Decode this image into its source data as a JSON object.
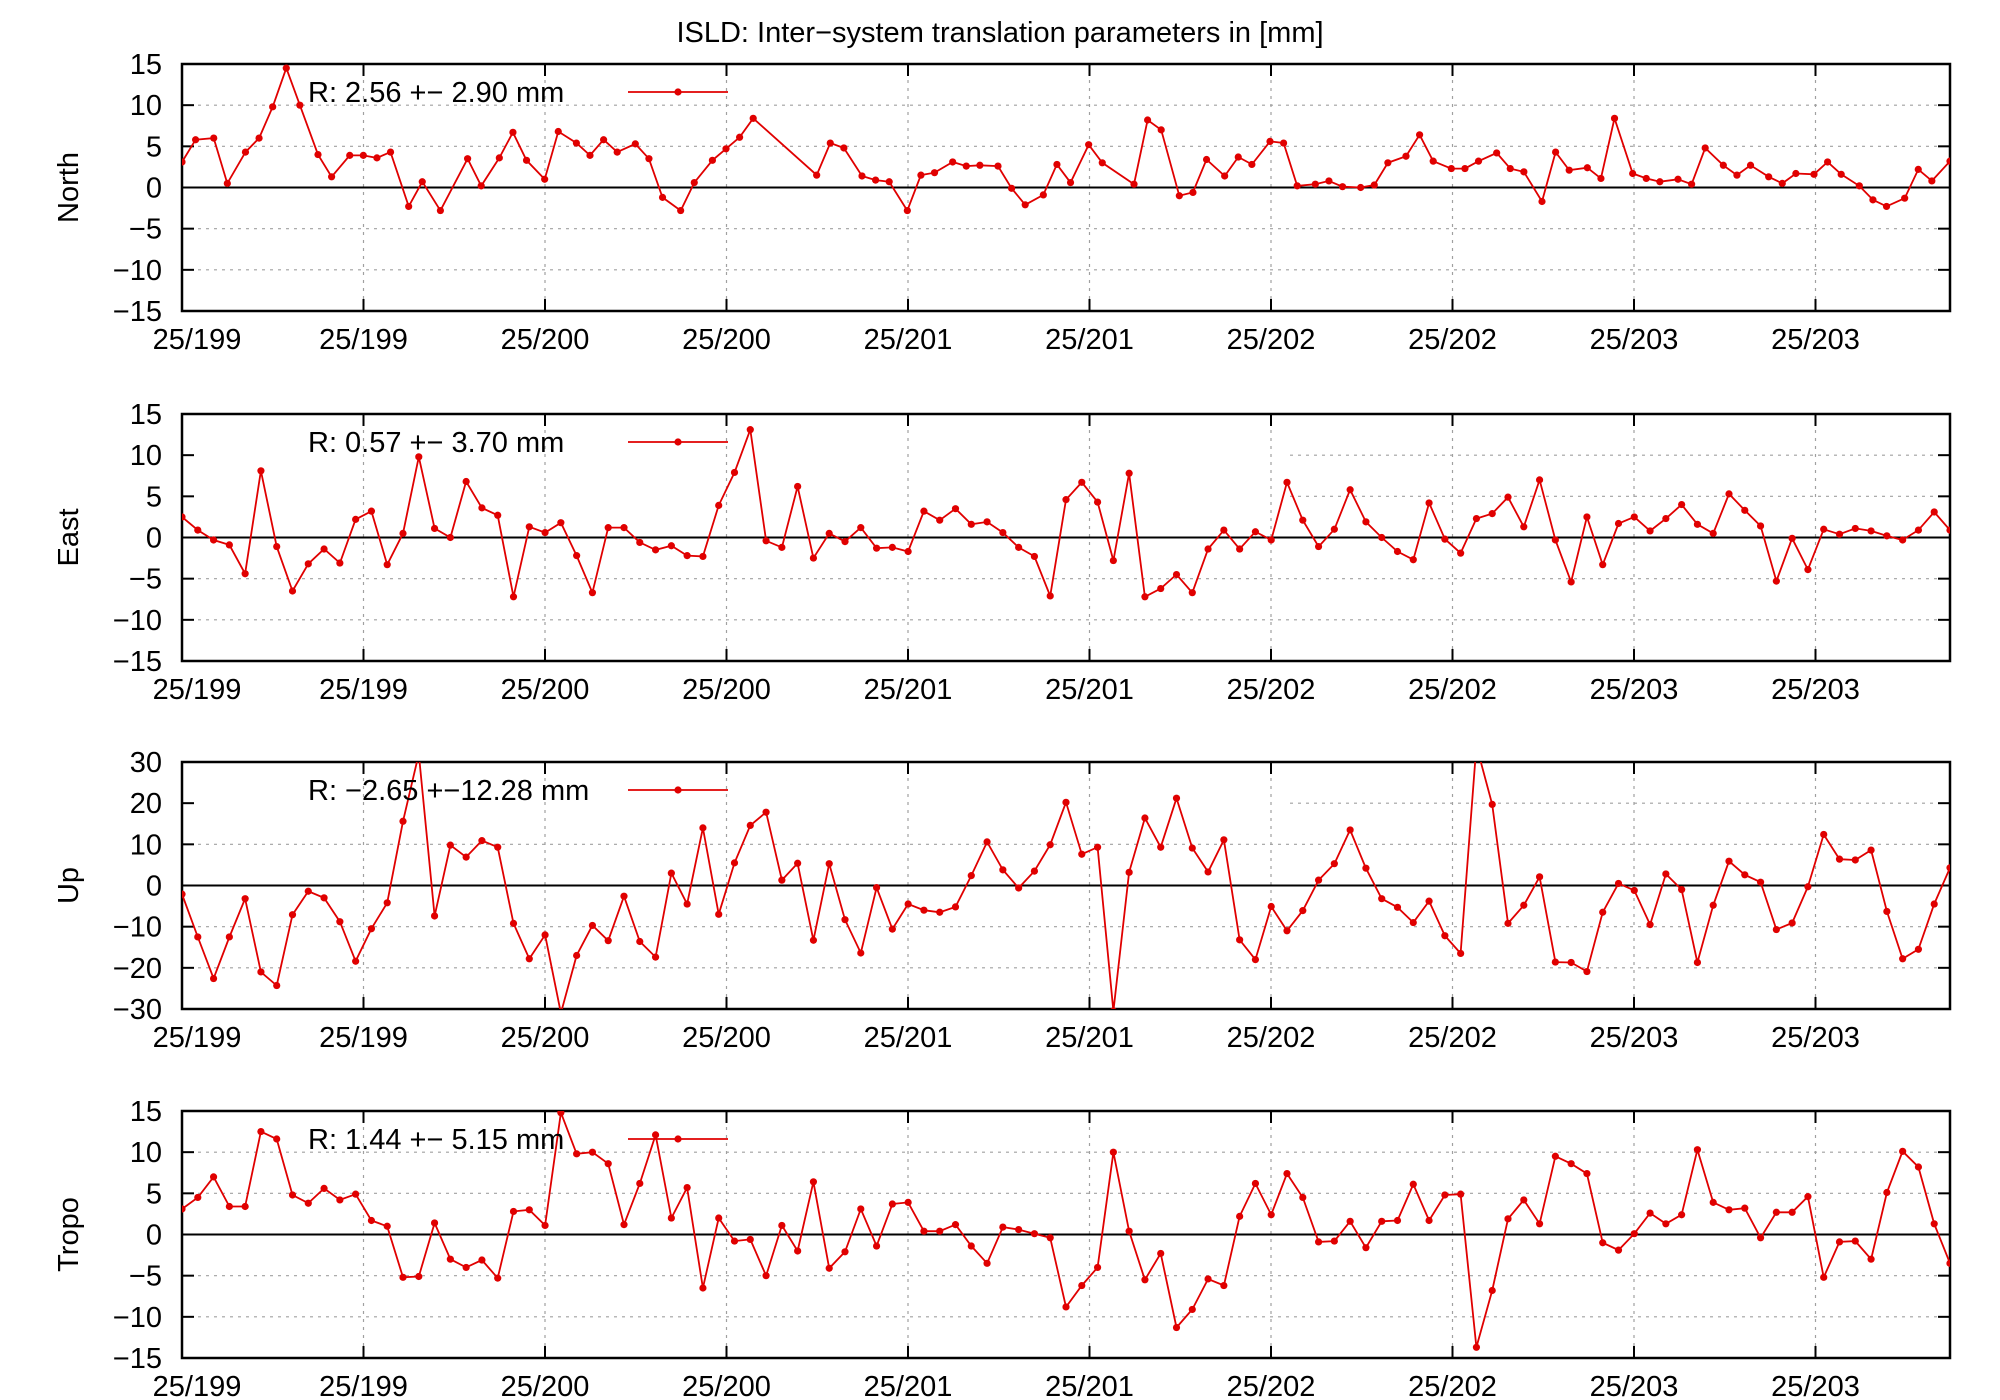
{
  "title": "ISLD: Inter−system translation parameters in [mm]",
  "chart_data": [
    {
      "type": "line",
      "ylabel": "North",
      "ylim": [
        -15,
        15
      ],
      "yticks": [
        -15,
        -10,
        -5,
        0,
        5,
        10,
        15
      ],
      "ytick_labels": [
        "−15",
        "−10",
        "−5",
        "0",
        "5",
        "10",
        "15"
      ],
      "xlim": [
        0,
        195
      ],
      "xtick_labels": [
        "25/199",
        "25/199",
        "25/200",
        "25/200",
        "25/201",
        "25/201",
        "25/202",
        "25/202",
        "25/203",
        "25/203"
      ],
      "grid": true,
      "legend_position": "top-left",
      "legend": "R:   2.56 +− 2.90 mm",
      "series_color": "#e00000",
      "values": [
        3.1,
        5.8,
        6,
        0.5,
        4.3,
        6,
        9.8,
        14.5,
        10,
        4,
        1.3,
        3.9,
        3.9,
        3.6,
        4.3,
        -2.3,
        0.7,
        -2.8,
        3.5,
        0.2,
        3.6,
        6.7,
        3.3,
        1,
        6.8,
        5.4,
        3.9,
        5.8,
        4.3,
        5.3,
        3.5,
        -1.2,
        -2.8,
        0.6,
        3.3,
        4.7,
        6.1,
        8.4,
        1.5,
        5.4,
        4.8,
        1.4,
        0.9,
        0.7,
        -2.8,
        1.5,
        1.8,
        3.1,
        2.6,
        2.7,
        2.6,
        -0.1,
        -2.1,
        -0.9,
        2.8,
        0.6,
        5.2,
        3,
        0.4,
        8.2,
        7,
        -1,
        -0.6,
        3.4,
        1.4,
        3.7,
        2.8,
        5.6,
        5.4,
        0.2,
        0.4,
        0.8,
        0.1,
        0,
        0.3,
        3,
        3.8,
        6.4,
        3.2,
        2.3,
        2.3,
        3.2,
        4.2,
        2.3,
        1.9,
        -1.7,
        4.3,
        2.1,
        2.4,
        1.1,
        8.4,
        1.7,
        1.1,
        0.7,
        1,
        0.4,
        4.8,
        2.7,
        1.5,
        2.7,
        1.3,
        0.5,
        1.7,
        1.6,
        3.1,
        1.6,
        0.2,
        -1.5,
        -2.3,
        -1.3,
        2.2,
        0.8,
        3.2
      ],
      "x": [
        0,
        1.5,
        3.5,
        5,
        7,
        8.5,
        10,
        11.5,
        13,
        15,
        16.5,
        18.5,
        20,
        21.5,
        23,
        25,
        26.5,
        28.5,
        31.5,
        33,
        35,
        36.5,
        38,
        40,
        41.5,
        43.5,
        45,
        46.5,
        48,
        50,
        51.5,
        53,
        55,
        56.5,
        58.5,
        60,
        61.5,
        63,
        70,
        71.5,
        73,
        75,
        76.5,
        78,
        80,
        81.5,
        83,
        85,
        86.5,
        88,
        90,
        91.5,
        93,
        95,
        96.5,
        98,
        100,
        101.5,
        105,
        106.5,
        108,
        110,
        111.5,
        113,
        115,
        116.5,
        118,
        120,
        121.5,
        123,
        125,
        126.5,
        128,
        130,
        131.5,
        133,
        135,
        136.5,
        138,
        140,
        141.5,
        143,
        145,
        146.5,
        148,
        150,
        151.5,
        153,
        155,
        156.5,
        158,
        160,
        161.5,
        163,
        165,
        166.5,
        168,
        170,
        171.5,
        173,
        175,
        176.5,
        178,
        180,
        181.5,
        183,
        185,
        186.5,
        188,
        190,
        191.5,
        193,
        195
      ]
    },
    {
      "type": "line",
      "ylabel": "East",
      "ylim": [
        -15,
        15
      ],
      "yticks": [
        -15,
        -10,
        -5,
        0,
        5,
        10,
        15
      ],
      "ytick_labels": [
        "−15",
        "−10",
        "−5",
        "0",
        "5",
        "10",
        "15"
      ],
      "xlim": [
        0,
        195
      ],
      "xtick_labels": [
        "25/199",
        "25/199",
        "25/200",
        "25/200",
        "25/201",
        "25/201",
        "25/202",
        "25/202",
        "25/203",
        "25/203"
      ],
      "grid": true,
      "legend_position": "top-left",
      "legend": "R:   0.57 +− 3.70 mm",
      "series_color": "#e00000",
      "values": [
        2.5,
        0.9,
        -0.3,
        -0.9,
        -4.4,
        8.1,
        -1.1,
        -6.5,
        -3.2,
        -1.4,
        -3.1,
        2.2,
        3.2,
        -3.3,
        0.5,
        9.8,
        1.1,
        0,
        6.8,
        3.6,
        2.7,
        -7.2,
        1.3,
        0.6,
        1.8,
        -2.2,
        -6.7,
        1.2,
        1.2,
        -0.6,
        -1.5,
        -1,
        -2.2,
        -2.3,
        3.9,
        7.9,
        13.1,
        -0.4,
        -1.2,
        6.2,
        -2.5,
        0.5,
        -0.5,
        1.2,
        -1.3,
        -1.2,
        -1.7,
        3.2,
        2.1,
        3.5,
        1.6,
        1.9,
        0.6,
        -1.2,
        -2.3,
        -7.1,
        4.6,
        6.7,
        4.3,
        -2.8,
        7.8,
        -7.2,
        -6.2,
        -4.5,
        -6.7,
        -1.4,
        0.9,
        -1.4,
        0.7,
        -0.3,
        6.7,
        2.1,
        -1.1,
        1,
        5.8,
        1.9,
        0,
        -1.7,
        -2.7,
        4.2,
        -0.2,
        -1.9,
        2.3,
        2.9,
        4.9,
        1.3,
        7,
        -0.3,
        -5.4,
        2.5,
        -3.3,
        1.7,
        2.5,
        0.8,
        2.3,
        4,
        1.6,
        0.5,
        5.3,
        3.3,
        1.4,
        -5.3,
        -0.1,
        -3.9,
        1,
        0.4,
        1.1,
        0.8,
        0.2,
        -0.3,
        0.9,
        3.1,
        0.9
      ]
    },
    {
      "type": "line",
      "ylabel": "Up",
      "ylim": [
        -30,
        30
      ],
      "yticks": [
        -30,
        -20,
        -10,
        0,
        10,
        20,
        30
      ],
      "ytick_labels": [
        "−30",
        "−20",
        "−10",
        "0",
        "10",
        "20",
        "30"
      ],
      "xlim": [
        0,
        195
      ],
      "xtick_labels": [
        "25/199",
        "25/199",
        "25/200",
        "25/200",
        "25/201",
        "25/201",
        "25/202",
        "25/202",
        "25/203",
        "25/203"
      ],
      "grid": true,
      "legend_position": "top-left",
      "legend": "R:  −2.65 +−12.28 mm",
      "series_color": "#e00000",
      "values": [
        -2.1,
        -12.5,
        -22.6,
        -12.5,
        -3.2,
        -21,
        -24.3,
        -7.1,
        -1.4,
        -3,
        -8.8,
        -18.4,
        -10.5,
        -4.2,
        15.6,
        32,
        -7.4,
        9.8,
        6.9,
        10.9,
        9.3,
        -9.2,
        -17.8,
        -12,
        -31,
        -17,
        -9.7,
        -13.4,
        -2.6,
        -13.6,
        -17.4,
        3,
        -4.5,
        14,
        -7,
        5.5,
        14.6,
        17.8,
        1.3,
        5.4,
        -13.3,
        5.3,
        -8.3,
        -16.4,
        -0.5,
        -10.6,
        -4.5,
        -6,
        -6.5,
        -5.2,
        2.4,
        10.6,
        3.8,
        -0.6,
        3.5,
        9.9,
        20.2,
        7.6,
        9.3,
        -30.5,
        3.2,
        16.4,
        9.3,
        21.2,
        9.1,
        3.3,
        11.1,
        -13.2,
        -18,
        -5.1,
        -11,
        -6.1,
        1.3,
        5.3,
        13.5,
        4.2,
        -3.2,
        -5.3,
        -9,
        -3.8,
        -12.2,
        -16.5,
        34,
        19.7,
        -9.2,
        -4.8,
        2.1,
        -18.6,
        -18.7,
        -20.9,
        -6.5,
        0.5,
        -1.2,
        -9.5,
        2.8,
        -1,
        -18.7,
        -4.8,
        5.9,
        2.6,
        0.8,
        -10.7,
        -9.1,
        -0.3,
        12.4,
        6.4,
        6.2,
        8.6,
        -6.3,
        -17.8,
        -15.5,
        -4.5,
        4.3
      ]
    },
    {
      "type": "line",
      "ylabel": "Tropo",
      "ylim": [
        -15,
        15
      ],
      "yticks": [
        -15,
        -10,
        -5,
        0,
        5,
        10,
        15
      ],
      "ytick_labels": [
        "−15",
        "−10",
        "−5",
        "0",
        "5",
        "10",
        "15"
      ],
      "xlim": [
        0,
        195
      ],
      "xtick_labels": [
        "25/199",
        "25/199",
        "25/200",
        "25/200",
        "25/201",
        "25/201",
        "25/202",
        "25/202",
        "25/203",
        "25/203"
      ],
      "grid": true,
      "legend_position": "top-left",
      "legend": "R:   1.44 +− 5.15 mm",
      "series_color": "#e00000",
      "values": [
        3.1,
        4.5,
        7,
        3.4,
        3.4,
        12.5,
        11.6,
        4.8,
        3.8,
        5.6,
        4.2,
        4.9,
        1.7,
        1,
        -5.2,
        -5.1,
        1.4,
        -3,
        -4,
        -3.1,
        -5.3,
        2.8,
        3,
        1.1,
        14.8,
        9.8,
        10,
        8.6,
        1.2,
        6.2,
        12.1,
        2,
        5.7,
        -6.5,
        2,
        -0.8,
        -0.6,
        -5,
        1.1,
        -2,
        6.4,
        -4.1,
        -2.1,
        3.1,
        -1.4,
        3.7,
        3.9,
        0.4,
        0.4,
        1.2,
        -1.4,
        -3.5,
        0.9,
        0.6,
        0.1,
        -0.4,
        -8.8,
        -6.2,
        -4,
        10,
        0.4,
        -5.5,
        -2.3,
        -11.3,
        -9.1,
        -5.4,
        -6.2,
        2.2,
        6.2,
        2.4,
        7.4,
        4.5,
        -0.9,
        -0.8,
        1.6,
        -1.6,
        1.6,
        1.7,
        6.1,
        1.7,
        4.8,
        4.9,
        -13.7,
        -6.8,
        1.9,
        4.2,
        1.3,
        9.5,
        8.6,
        7.4,
        -1,
        -1.9,
        0.1,
        2.6,
        1.3,
        2.4,
        10.3,
        3.9,
        3,
        3.2,
        -0.4,
        2.7,
        2.7,
        4.6,
        -5.2,
        -0.9,
        -0.8,
        -3,
        5.1,
        10.1,
        8.2,
        1.3,
        -3.5
      ]
    }
  ]
}
